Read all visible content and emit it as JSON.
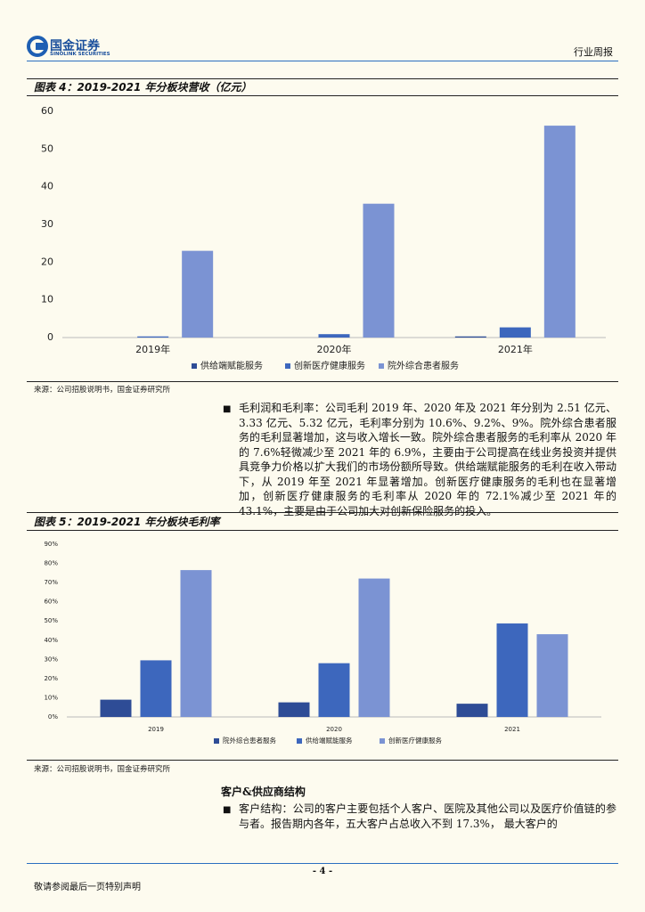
{
  "header": {
    "brand": "国金证券",
    "brand_en": "SINOLINK SECURITIES",
    "report_type": "行业周报"
  },
  "chart_data": [
    {
      "type": "bar",
      "title": "图表 4：2019-2021 年分板块营收（亿元）",
      "categories": [
        "2019年",
        "2020年",
        "2021年"
      ],
      "series": [
        {
          "name": "供给端赋能服务",
          "color": "#2e4c96",
          "values": [
            0,
            0,
            0.3
          ]
        },
        {
          "name": "创新医疗健康服务",
          "color": "#3d67bd",
          "values": [
            0.3,
            0.9,
            2.7
          ]
        },
        {
          "name": "院外综合患者服务",
          "color": "#7b93d3",
          "values": [
            23,
            35.5,
            56.2
          ]
        }
      ],
      "ylim": [
        0,
        60
      ],
      "yticks": [
        0,
        10,
        20,
        30,
        40,
        50,
        60
      ],
      "grid": false,
      "source": "来源：公司招股说明书，国金证券研究所"
    },
    {
      "type": "bar",
      "title": "图表 5：2019-2021 年分板块毛利率",
      "categories": [
        "2019",
        "2020",
        "2021"
      ],
      "series": [
        {
          "name": "院外综合患者服务",
          "color": "#2e4c96",
          "values": [
            9,
            7.6,
            6.9
          ]
        },
        {
          "name": "供给端赋能服务",
          "color": "#3d67bd",
          "values": [
            29.5,
            28,
            48.7
          ]
        },
        {
          "name": "创新医疗健康服务",
          "color": "#7b93d3",
          "values": [
            76.5,
            72.1,
            43.1
          ]
        }
      ],
      "ylim": [
        0,
        90
      ],
      "yticks": [
        {
          "value": 0,
          "label": "0%"
        },
        {
          "value": 10,
          "label": "10%"
        },
        {
          "value": 20,
          "label": "20%"
        },
        {
          "value": 30,
          "label": "30%"
        },
        {
          "value": 40,
          "label": "40%"
        },
        {
          "value": 50,
          "label": "50%"
        },
        {
          "value": 60,
          "label": "60%"
        },
        {
          "value": 70,
          "label": "70%"
        },
        {
          "value": 80,
          "label": "80%"
        },
        {
          "value": 90,
          "label": "90%"
        }
      ],
      "grid": false,
      "source": "来源：公司招股说明书，国金证券研究所"
    }
  ],
  "body": {
    "paragraphs": [
      "毛利润和毛利率：公司毛利 2019 年、2020 年及 2021 年分别为 2.51 亿元、3.33 亿元、5.32 亿元，毛利率分别为 10.6%、9.2%、9%。院外综合患者服务的毛利显著增加，这与收入增长一致。院外综合患者服务的毛利率从 2020 年的 7.6%轻微减少至 2021 年的 6.9%，主要由于公司提高在线业务投资并提供具竞争力价格以扩大我们的市场份额所导致。供给端赋能服务的毛利在收入带动下，从 2019 年至 2021 年显著增加。创新医疗健康服务的毛利也在显著增加，创新医疗健康服务的毛利率从 2020 年的 72.1%减少至 2021 年的 43.1%，主要是由于公司加大对创新保险服务的投入。",
      "客户结构：公司的客户主要包括个人客户、医院及其他公司以及医疗价值链的参与者。报告期内各年，五大客户占总收入不到 17.3%， 最大客户的"
    ],
    "heading": "客户&供应商结构"
  },
  "footer": {
    "page": "- 4 -",
    "disclaimer": "敬请参阅最后一页特别声明"
  }
}
